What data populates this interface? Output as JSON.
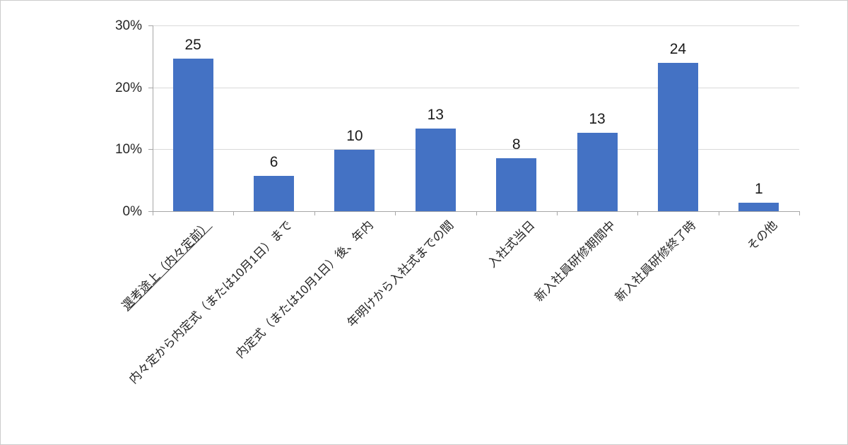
{
  "chart_data": {
    "type": "bar",
    "title": "",
    "categories": [
      "選考途上（内々定前）",
      "内々定から内定式（または10月1日）まで",
      "内定式（または10月1日）後、年内",
      "年明けから入社式までの間",
      "入社式当日",
      "新入社員研修期間中",
      "新入社員研修終了時",
      "その他"
    ],
    "values": [
      25,
      6,
      10,
      13,
      8,
      13,
      24,
      1
    ],
    "bar_heights_pct": [
      24.6,
      5.7,
      9.9,
      13.4,
      8.5,
      12.7,
      24.0,
      1.4
    ],
    "unit": "%",
    "xlabel": "",
    "ylabel": "",
    "ylim": [
      0,
      30
    ],
    "yticks": [
      0,
      10,
      20,
      30
    ],
    "ytick_labels": [
      "0%",
      "10%",
      "20%",
      "30%"
    ],
    "grid": true,
    "legend": false,
    "underlined_category_index": 0
  },
  "colors": {
    "bar": "#4472C4",
    "gridline": "#d9d9d9",
    "axis": "#a6a6a6",
    "text": "#262626",
    "background": "#ffffff",
    "frame_border": "#cccccc"
  }
}
